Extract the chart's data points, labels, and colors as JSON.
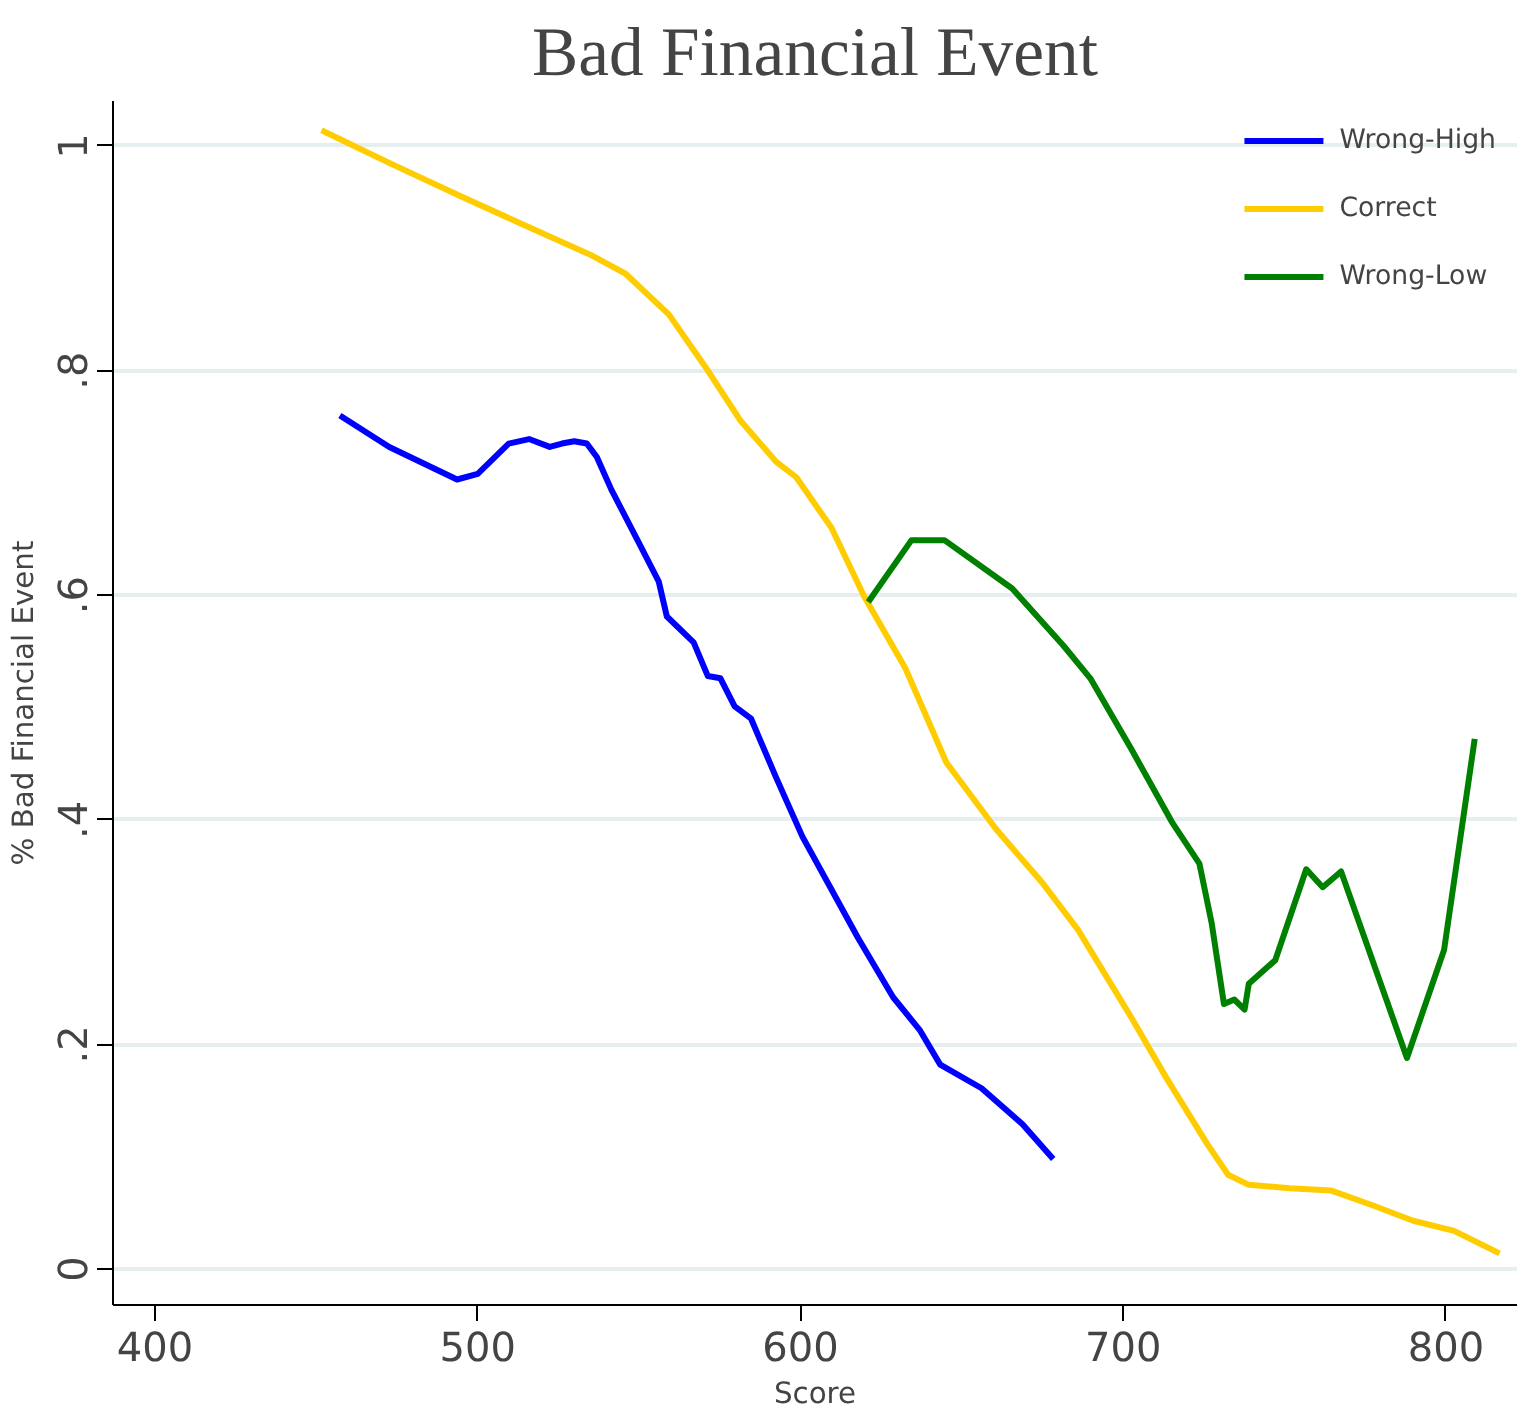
{
  "chart_data": {
    "type": "line",
    "title": "Bad Financial Event",
    "xlabel": "Score",
    "ylabel": "% Bad Financial Event",
    "xlim": [
      387,
      822
    ],
    "ylim": [
      -0.032,
      1.04
    ],
    "xticks": [
      400,
      500,
      600,
      700,
      800
    ],
    "yticks": [
      {
        "value": 0,
        "label": "0"
      },
      {
        "value": 0.2,
        "label": ".2"
      },
      {
        "value": 0.4,
        "label": ".4"
      },
      {
        "value": 0.6,
        "label": ".6"
      },
      {
        "value": 0.8,
        "label": ".8"
      },
      {
        "value": 1,
        "label": "1"
      }
    ],
    "grid": "y",
    "legend": "top right",
    "line_style": "solid",
    "marker": "none",
    "series": [
      {
        "name": "Wrong-High",
        "color": "#0000ff",
        "x": [
          457.3,
          472.6,
          493.6,
          500,
          509.6,
          515.9,
          522.3,
          526.1,
          529.9,
          533.8,
          536.9,
          541.4,
          549.7,
          556.1,
          558.6,
          566.9,
          571.3,
          575.2,
          579.6,
          584.7,
          592.4,
          600.6,
          609.6,
          617.8,
          628.7,
          636.9,
          643.3,
          656.1,
          668.8,
          678.3
        ],
        "values": [
          0.76,
          0.732,
          0.703,
          0.708,
          0.735,
          0.739,
          0.732,
          0.735,
          0.737,
          0.735,
          0.723,
          0.694,
          0.648,
          0.612,
          0.581,
          0.558,
          0.528,
          0.526,
          0.501,
          0.49,
          0.438,
          0.385,
          0.338,
          0.295,
          0.242,
          0.213,
          0.182,
          0.161,
          0.129,
          0.098
        ]
      },
      {
        "name": "Correct",
        "color": "#ffcc00",
        "x": [
          451.6,
          473.2,
          494.9,
          514,
          535,
          545.9,
          559.2,
          571.3,
          581.5,
          592.4,
          598.7,
          609.6,
          619.7,
          632.5,
          645.2,
          660.5,
          675.2,
          686,
          702.5,
          713.4,
          726.1,
          732.5,
          738.9,
          751.6,
          764.3,
          777,
          789.8,
          802.5,
          816.6
        ],
        "values": [
          1.014,
          0.984,
          0.955,
          0.93,
          0.903,
          0.886,
          0.85,
          0.8,
          0.755,
          0.719,
          0.705,
          0.66,
          0.599,
          0.535,
          0.451,
          0.392,
          0.343,
          0.302,
          0.224,
          0.17,
          0.111,
          0.084,
          0.075,
          0.072,
          0.07,
          0.057,
          0.043,
          0.034,
          0.014
        ]
      },
      {
        "name": "Wrong-Low",
        "color": "#008000",
        "x": [
          621,
          634.4,
          644.6,
          665.6,
          681.5,
          689.8,
          702.5,
          715.3,
          723.6,
          727.4,
          731.2,
          734.4,
          737.6,
          738.9,
          747.1,
          756.7,
          761.8,
          767.5,
          787.9,
          799.4,
          808.9
        ],
        "values": [
          0.594,
          0.649,
          0.649,
          0.606,
          0.555,
          0.526,
          0.463,
          0.397,
          0.361,
          0.308,
          0.236,
          0.24,
          0.231,
          0.254,
          0.275,
          0.356,
          0.34,
          0.354,
          0.188,
          0.284,
          0.472
        ]
      }
    ]
  }
}
